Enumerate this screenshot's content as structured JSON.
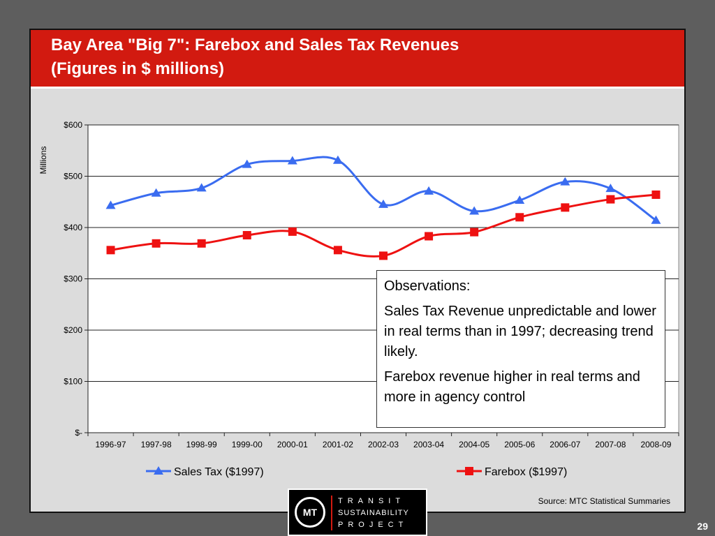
{
  "slide": {
    "title_line1": "Bay Area \"Big 7\":  Farebox and Sales Tax Revenues",
    "title_line2": "(Figures in $ millions)",
    "source": "Source: MTC Statistical Summaries",
    "page_number": "29"
  },
  "observations": {
    "heading": "Observations:",
    "line1": "Sales Tax Revenue unpredictable and lower in real terms than in 1997; decreasing trend likely.",
    "line2": "Farebox revenue higher in real terms and more in agency control"
  },
  "logo": {
    "mark": "MT",
    "line1": "TRANSIT",
    "line2": "SUSTAINABILITY",
    "line3": "PROJECT"
  },
  "colors": {
    "title_band": "#d21a10",
    "sales_tax": "#3a6cf0",
    "farebox": "#ee1111",
    "plot_background": "#ffffff"
  },
  "chart_data": {
    "type": "line",
    "ylabel": "Millions",
    "ylim": [
      0,
      600
    ],
    "yticks": [
      0,
      100,
      200,
      300,
      400,
      500,
      600
    ],
    "ytick_labels": [
      "$-",
      "$100",
      "$200",
      "$300",
      "$400",
      "$500",
      "$600"
    ],
    "categories": [
      "1996-97",
      "1997-98",
      "1998-99",
      "1999-00",
      "2000-01",
      "2001-02",
      "2002-03",
      "2003-04",
      "2004-05",
      "2005-06",
      "2006-07",
      "2007-08",
      "2008-09"
    ],
    "grid": "horizontal",
    "legend_position": "bottom",
    "series": [
      {
        "name": "Sales Tax ($1997)",
        "marker": "triangle",
        "color": "#3a6cf0",
        "values": [
          443,
          467,
          477,
          523,
          530,
          531,
          445,
          471,
          432,
          453,
          489,
          476,
          414
        ]
      },
      {
        "name": "Farebox ($1997)",
        "marker": "square",
        "color": "#ee1111",
        "values": [
          356,
          369,
          369,
          385,
          392,
          356,
          345,
          383,
          391,
          420,
          439,
          455,
          464
        ]
      }
    ]
  }
}
